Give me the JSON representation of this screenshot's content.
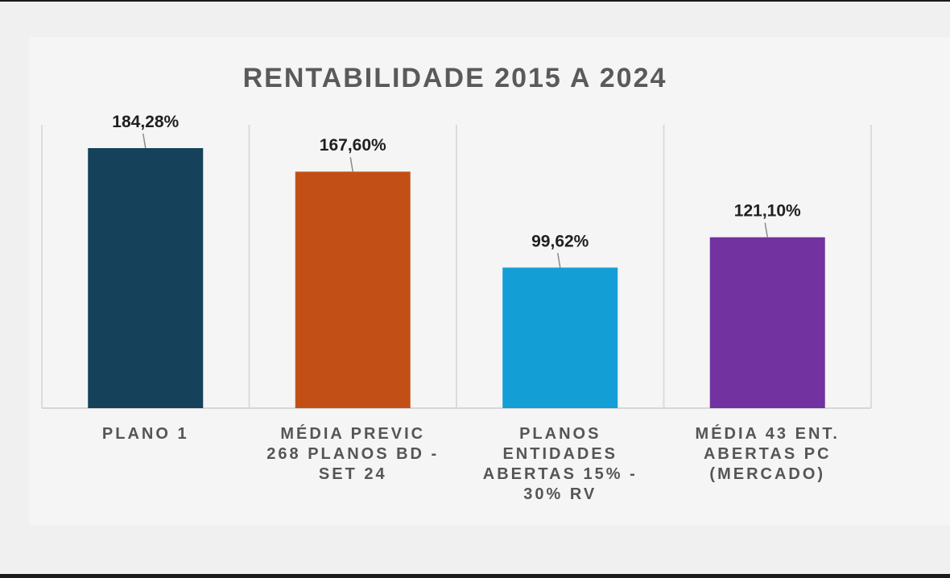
{
  "chart_data": {
    "type": "bar",
    "title": "RENTABILIDADE  2015 A 2024",
    "categories": [
      "PLANO 1",
      "MÉDIA PREVIC\n268 PLANOS BD -\nSET 24",
      "PLANOS\nENTIDADES\nABERTAS 15% -\n30% RV",
      "MÉDIA 43 ENT.\nABERTAS PC\n(MERCADO)"
    ],
    "values": [
      184.28,
      167.6,
      99.62,
      121.1
    ],
    "value_labels": [
      "184,28%",
      "167,60%",
      "99,62%",
      "121,10%"
    ],
    "colors": [
      "#15415a",
      "#c25016",
      "#149ed6",
      "#7232a0"
    ],
    "grid": "vertical separators",
    "legend": "none",
    "ylim": [
      0,
      184.28
    ]
  }
}
